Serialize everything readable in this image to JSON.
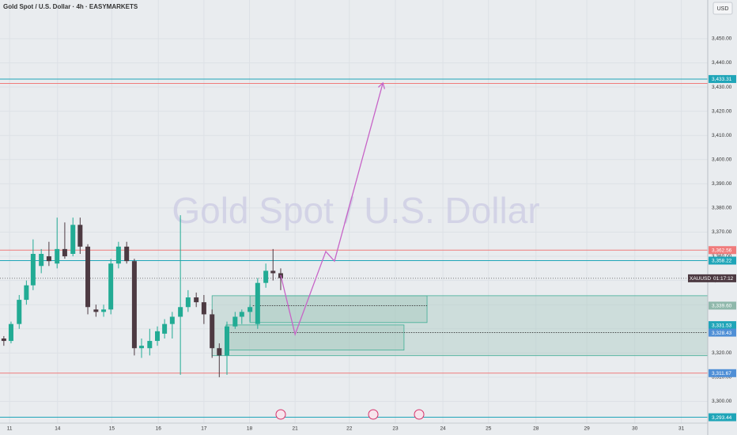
{
  "chart_data": {
    "type": "candlestick",
    "title": "Gold Spot / U.S. Dollar · 4h · EASYMARKETS",
    "watermark": "Gold Spot / U.S. Dollar",
    "currency": "USD",
    "grid": true,
    "up_color": "#22ab94",
    "down_color": "#4d3a42",
    "xlim": [
      -0.2,
      14.55
    ],
    "xticks": [
      {
        "value": 0,
        "label": "11"
      },
      {
        "value": 1,
        "label": "14"
      },
      {
        "value": 2.13,
        "label": "15"
      },
      {
        "value": 3.1,
        "label": "16"
      },
      {
        "value": 4.05,
        "label": "17"
      },
      {
        "value": 5,
        "label": "18"
      },
      {
        "value": 5.95,
        "label": "21"
      },
      {
        "value": 7.08,
        "label": "22"
      },
      {
        "value": 8.04,
        "label": "23"
      },
      {
        "value": 9.03,
        "label": "24"
      },
      {
        "value": 9.98,
        "label": "25"
      },
      {
        "value": 10.97,
        "label": "28"
      },
      {
        "value": 12.03,
        "label": "29"
      },
      {
        "value": 13.03,
        "label": "30"
      },
      {
        "value": 14,
        "label": "31"
      }
    ],
    "ylim": [
      3291,
      3466
    ],
    "yticks": [
      {
        "value": 3300,
        "label": "3,300.00"
      },
      {
        "value": 3310,
        "label": "3,310.00"
      },
      {
        "value": 3320,
        "label": "3,320.00"
      },
      {
        "value": 3330,
        "label": "3,330.00"
      },
      {
        "value": 3340,
        "label": "3,340.00"
      },
      {
        "value": 3350,
        "label": "3,350.00"
      },
      {
        "value": 3360,
        "label": "3,360.00"
      },
      {
        "value": 3370,
        "label": "3,370.00"
      },
      {
        "value": 3380,
        "label": "3,380.00"
      },
      {
        "value": 3390,
        "label": "3,390.00"
      },
      {
        "value": 3400,
        "label": "3,400.00"
      },
      {
        "value": 3410,
        "label": "3,410.00"
      },
      {
        "value": 3420,
        "label": "3,420.00"
      },
      {
        "value": 3430,
        "label": "3,430.00"
      },
      {
        "value": 3440,
        "label": "3,440.00"
      },
      {
        "value": 3450,
        "label": "3,450.00"
      }
    ],
    "x": [
      -0.12,
      0.03,
      0.2,
      0.35,
      0.49,
      0.66,
      0.82,
      0.99,
      1.15,
      1.32,
      1.47,
      1.63,
      1.8,
      1.96,
      2.11,
      2.27,
      2.44,
      2.6,
      2.75,
      2.92,
      3.08,
      3.23,
      3.39,
      3.56,
      3.72,
      3.89,
      4.05,
      4.22,
      4.37,
      4.53,
      4.7,
      4.84,
      5.01,
      5.17,
      5.34,
      5.49,
      5.65
    ],
    "open": [
      3326,
      3325,
      3332,
      3342,
      3348,
      3356,
      3360,
      3357,
      3363,
      3361,
      3373,
      3364,
      3338,
      3337,
      3338,
      3357,
      3364,
      3358,
      3322,
      3322,
      3325,
      3328,
      3332,
      3335,
      3339,
      3343,
      3341,
      3336,
      3322,
      3319,
      3331,
      3335,
      3337,
      3332,
      3349,
      3354,
      3353
    ],
    "high": [
      3327,
      3333,
      3344,
      3350,
      3367,
      3363,
      3366,
      3376,
      3374,
      3376,
      3376,
      3365,
      3340,
      3340,
      3359,
      3366,
      3366,
      3359,
      3326,
      3330,
      3331,
      3334,
      3337,
      3377,
      3346,
      3345,
      3344,
      3338,
      3324,
      3333,
      3337,
      3338,
      3340,
      3351,
      3357,
      3363,
      3355
    ],
    "low": [
      3323,
      3324,
      3330,
      3340,
      3346,
      3353,
      3356,
      3355,
      3359,
      3360,
      3361,
      3336,
      3335,
      3335,
      3336,
      3355,
      3357,
      3319,
      3318,
      3319,
      3323,
      3326,
      3326,
      3311,
      3337,
      3339,
      3332,
      3318,
      3310,
      3311,
      3330,
      3332,
      3333,
      3330,
      3347,
      3350,
      3346
    ],
    "close": [
      3325,
      3332,
      3342,
      3348,
      3361,
      3361,
      3358,
      3363,
      3360,
      3373,
      3364,
      3339,
      3337,
      3338,
      3357,
      3364,
      3358,
      3322,
      3323,
      3325,
      3329,
      3332,
      3335,
      3339,
      3343,
      3341,
      3336,
      3322,
      3319,
      3331,
      3335,
      3337,
      3339,
      3349,
      3354,
      3353,
      3351
    ],
    "levels": [
      {
        "value": 3433.31,
        "label": "3,433.31",
        "color": "#1fa5b8",
        "line": true
      },
      {
        "value": 3431.5,
        "color": "#f07b7b",
        "line": true
      },
      {
        "value": 3362.56,
        "label": "3,362.56",
        "color": "#f07b7b",
        "line": true
      },
      {
        "value": 3358.22,
        "label": "3,358.22",
        "color": "#1fa5b8",
        "line": true
      },
      {
        "value": 3339.6,
        "label": "3,339.60",
        "color": "#8fb8ab",
        "line": false
      },
      {
        "value": 3331.53,
        "label": "3,331.53",
        "color": "#1fa5b8",
        "line": false
      },
      {
        "value": 3328.43,
        "label": "3,328.43",
        "color": "#4f8fd6",
        "line": false
      },
      {
        "value": 3311.67,
        "label": "3,311.67",
        "color": "#4f8fd6",
        "line_color": "#f07b7b",
        "line": true
      },
      {
        "value": 3293.44,
        "label": "3,293.44",
        "color": "#1fa5b8",
        "line": true
      }
    ],
    "zones": [
      {
        "xlim": [
          4.22,
          14.55
        ],
        "ylim": [
          3318.9,
          3343.7
        ]
      },
      {
        "xlim": [
          5.01,
          8.7
        ],
        "ylim": [
          3332.6,
          3343.7
        ]
      },
      {
        "xlim": [
          4.51,
          8.22
        ],
        "ylim": [
          3321.2,
          3331.6
        ]
      }
    ],
    "dotted_lines": [
      {
        "value": 3339.6,
        "xlim": [
          5.07,
          8.7
        ]
      },
      {
        "value": 3328.43,
        "xlim": [
          4.51,
          14.55
        ]
      }
    ],
    "projection": {
      "color": "#c764c7",
      "x": [
        5.65,
        5.95,
        6.59,
        6.77,
        7.78
      ],
      "y": [
        3352.2,
        3327.7,
        3362.0,
        3358.0,
        3431.7
      ]
    },
    "current": {
      "value": 3350.9,
      "symbol": "XAUUSD",
      "countdown": "01:17:12"
    }
  }
}
